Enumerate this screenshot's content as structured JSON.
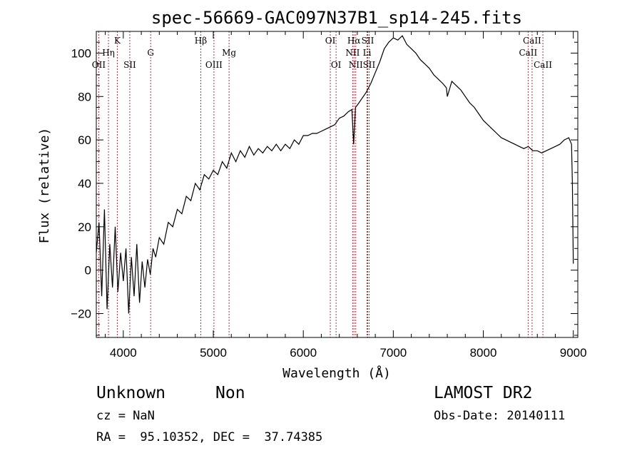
{
  "chart_data": {
    "type": "line",
    "title": "spec-56669-GAC097N37B1_sp14-245.fits",
    "xlabel": "Wavelength (Å)",
    "ylabel": "Flux (relative)",
    "xlim": [
      3700,
      9050
    ],
    "ylim": [
      -31,
      110
    ],
    "x_ticks": [
      4000,
      5000,
      6000,
      7000,
      8000,
      9000
    ],
    "y_ticks": [
      -20,
      0,
      20,
      40,
      60,
      80,
      100
    ],
    "grid": false,
    "line_color": "#000000",
    "marker_color": "#a0202a",
    "series": [
      {
        "x": [
          3700,
          3730,
          3760,
          3790,
          3820,
          3850,
          3880,
          3910,
          3940,
          3970,
          4000,
          4030,
          4060,
          4090,
          4120,
          4150,
          4180,
          4210,
          4240,
          4270,
          4300,
          4330,
          4360,
          4400,
          4450,
          4500,
          4550,
          4600,
          4650,
          4700,
          4750,
          4800,
          4850,
          4900,
          4950,
          5000,
          5050,
          5100,
          5150,
          5200,
          5250,
          5300,
          5350,
          5400,
          5450,
          5500,
          5550,
          5600,
          5650,
          5700,
          5750,
          5800,
          5850,
          5900,
          5950,
          6000,
          6050,
          6100,
          6150,
          6200,
          6250,
          6300,
          6350,
          6400,
          6450,
          6500,
          6540,
          6560,
          6580,
          6600,
          6650,
          6700,
          6750,
          6800,
          6850,
          6900,
          6950,
          7000,
          7050,
          7100,
          7150,
          7200,
          7250,
          7300,
          7350,
          7400,
          7450,
          7500,
          7550,
          7590,
          7600,
          7650,
          7700,
          7750,
          7800,
          7850,
          7900,
          7950,
          8000,
          8050,
          8100,
          8150,
          8200,
          8250,
          8300,
          8350,
          8400,
          8450,
          8500,
          8550,
          8600,
          8650,
          8700,
          8750,
          8800,
          8850,
          8900,
          8950,
          8980,
          8990,
          9000
        ],
        "y": [
          8,
          22,
          -12,
          28,
          -18,
          12,
          -8,
          20,
          -10,
          8,
          -5,
          10,
          -20,
          6,
          -12,
          12,
          -15,
          4,
          -8,
          5,
          -2,
          10,
          6,
          15,
          12,
          22,
          20,
          28,
          26,
          34,
          32,
          40,
          37,
          44,
          42,
          46,
          44,
          50,
          47,
          54,
          50,
          55,
          52,
          57,
          53,
          56,
          54,
          57,
          55,
          58,
          55,
          58,
          56,
          60,
          58,
          62,
          62,
          63,
          63,
          64,
          65,
          66,
          67,
          70,
          71,
          73,
          74,
          58,
          75,
          76,
          79,
          82,
          86,
          91,
          96,
          102,
          105,
          107,
          106,
          108,
          104,
          102,
          100,
          97,
          95,
          93,
          90,
          88,
          86,
          84,
          80,
          87,
          85,
          83,
          80,
          77,
          75,
          72,
          69,
          67,
          65,
          63,
          61,
          60,
          59,
          58,
          57,
          56,
          57,
          55,
          55,
          54,
          55,
          56,
          57,
          58,
          60,
          61,
          58,
          40,
          3
        ]
      }
    ],
    "lines": [
      {
        "name": "OII",
        "x": 3727,
        "row": 3
      },
      {
        "name": "Hη",
        "x": 3835,
        "row": 2
      },
      {
        "name": "K",
        "x": 3934,
        "row": 1
      },
      {
        "name": "SII",
        "x": 4072,
        "row": 3
      },
      {
        "name": "G",
        "x": 4304,
        "row": 2
      },
      {
        "name": "Hβ",
        "x": 4861,
        "row": 1
      },
      {
        "name": "OIII",
        "x": 5007,
        "row": 3
      },
      {
        "name": "Mg",
        "x": 5175,
        "row": 2
      },
      {
        "name": "OI",
        "x": 6300,
        "row": 1
      },
      {
        "name": "OI",
        "x": 6364,
        "row": 3
      },
      {
        "name": "Hα",
        "x": 6563,
        "row": 1
      },
      {
        "name": "NII",
        "x": 6548,
        "row": 2
      },
      {
        "name": "NII",
        "x": 6583,
        "row": 3
      },
      {
        "name": "SII",
        "x": 6716,
        "row": 1
      },
      {
        "name": "Li",
        "x": 6708,
        "row": 2
      },
      {
        "name": "SII",
        "x": 6731,
        "row": 3
      },
      {
        "name": "CaII",
        "x": 8542,
        "row": 1
      },
      {
        "name": "CaII",
        "x": 8498,
        "row": 2
      },
      {
        "name": "CaII",
        "x": 8662,
        "row": 3
      }
    ]
  },
  "footer": {
    "class_text": "Unknown",
    "subclass_text": "Non",
    "survey_text": "LAMOST DR2",
    "cz_text": "cz = NaN",
    "obs_date_text": "Obs-Date: 20140111",
    "coords_text": "RA =  95.10352, DEC =  37.74385"
  }
}
